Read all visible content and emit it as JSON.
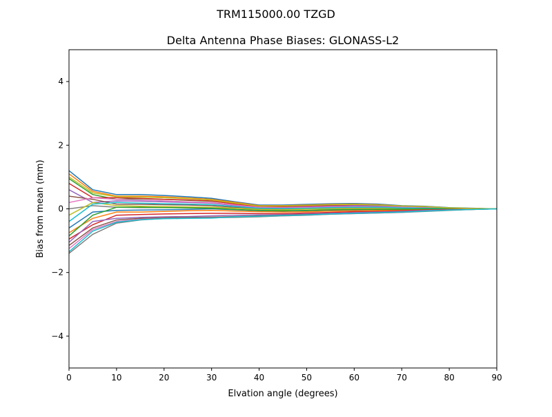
{
  "chart_data": {
    "type": "line",
    "suptitle": "TRM115000.00    TZGD",
    "title": "Delta Antenna Phase Biases: GLONASS-L2",
    "xlabel": "Elvation angle (degrees)",
    "ylabel": "Bias from mean (mm)",
    "xlim": [
      0,
      90
    ],
    "ylim": [
      -5,
      5
    ],
    "xticks": [
      0,
      10,
      20,
      30,
      40,
      50,
      60,
      70,
      80,
      90
    ],
    "yticks": [
      -4,
      -2,
      0,
      2,
      4
    ],
    "ytick_labels": [
      "−4",
      "−2",
      "0",
      "2",
      "4"
    ],
    "grid": false,
    "colors": [
      "#1f77b4",
      "#ff7f0e",
      "#2ca02c",
      "#d62728",
      "#9467bd",
      "#8c564b",
      "#e377c2",
      "#7f7f7f",
      "#bcbd22",
      "#17becf"
    ],
    "x": [
      0,
      5,
      10,
      15,
      20,
      25,
      30,
      35,
      40,
      45,
      50,
      55,
      60,
      65,
      70,
      75,
      80,
      85,
      90
    ],
    "series": [
      {
        "values": [
          1.2,
          0.6,
          0.45,
          0.45,
          0.42,
          0.38,
          0.33,
          0.22,
          0.12,
          0.12,
          0.14,
          0.16,
          0.17,
          0.15,
          0.1,
          0.08,
          0.04,
          0.02,
          0
        ]
      },
      {
        "values": [
          1.1,
          0.55,
          0.4,
          0.4,
          0.38,
          0.34,
          0.3,
          0.2,
          0.1,
          0.1,
          0.12,
          0.14,
          0.15,
          0.13,
          0.09,
          0.07,
          0.03,
          0.01,
          0
        ]
      },
      {
        "values": [
          0.95,
          0.45,
          0.3,
          0.32,
          0.3,
          0.27,
          0.24,
          0.16,
          0.08,
          0.08,
          0.1,
          0.12,
          0.13,
          0.11,
          0.08,
          0.06,
          0.03,
          0.01,
          0
        ]
      },
      {
        "values": [
          0.8,
          0.35,
          0.35,
          0.33,
          0.3,
          0.28,
          0.25,
          0.15,
          0.07,
          0.06,
          0.08,
          0.1,
          0.11,
          0.1,
          0.07,
          0.05,
          0.02,
          0.01,
          0
        ]
      },
      {
        "values": [
          0.6,
          0.2,
          0.25,
          0.24,
          0.22,
          0.2,
          0.18,
          0.1,
          0.04,
          0.04,
          0.06,
          0.08,
          0.1,
          0.09,
          0.06,
          0.04,
          0.02,
          0,
          0
        ]
      },
      {
        "values": [
          0.4,
          0.3,
          0.15,
          0.14,
          0.13,
          0.12,
          0.1,
          0.05,
          0.02,
          0.02,
          0.04,
          0.06,
          0.07,
          0.06,
          0.04,
          0.03,
          0.01,
          0,
          0
        ]
      },
      {
        "values": [
          0.2,
          0.35,
          0.3,
          0.28,
          0.25,
          0.22,
          0.2,
          0.12,
          0.05,
          0.04,
          0.05,
          0.06,
          0.07,
          0.06,
          0.05,
          0.03,
          0.01,
          0,
          0
        ]
      },
      {
        "values": [
          0.0,
          0.1,
          0.05,
          0.04,
          0.04,
          0.05,
          0.05,
          0.02,
          0,
          -0.01,
          0,
          0.02,
          0.03,
          0.03,
          0.02,
          0.01,
          0,
          0,
          0
        ]
      },
      {
        "values": [
          -0.2,
          0.2,
          0.1,
          0.08,
          0.07,
          0.06,
          0.05,
          0.02,
          -0.02,
          -0.03,
          -0.01,
          0,
          0.01,
          0.01,
          0.01,
          0,
          0,
          0,
          0
        ]
      },
      {
        "values": [
          -0.4,
          0.15,
          0.2,
          0.18,
          0.16,
          0.15,
          0.13,
          0.07,
          0.02,
          0.01,
          0.02,
          0.04,
          0.05,
          0.05,
          0.03,
          0.02,
          0.01,
          0,
          0
        ]
      },
      {
        "values": [
          -0.6,
          -0.1,
          -0.05,
          -0.04,
          -0.03,
          -0.02,
          0,
          -0.03,
          -0.06,
          -0.07,
          -0.06,
          -0.04,
          -0.03,
          -0.02,
          -0.01,
          -0.01,
          0,
          0,
          0
        ]
      },
      {
        "values": [
          -0.75,
          -0.3,
          -0.1,
          -0.1,
          -0.08,
          -0.06,
          -0.05,
          -0.07,
          -0.09,
          -0.1,
          -0.09,
          -0.07,
          -0.06,
          -0.05,
          -0.04,
          -0.02,
          -0.01,
          0,
          0
        ]
      },
      {
        "values": [
          -0.85,
          -0.2,
          0.05,
          0.05,
          0.04,
          0.03,
          0.02,
          -0.02,
          -0.05,
          -0.06,
          -0.05,
          -0.03,
          -0.02,
          -0.02,
          -0.01,
          0,
          0,
          0,
          0
        ]
      },
      {
        "values": [
          -0.95,
          -0.5,
          -0.2,
          -0.18,
          -0.16,
          -0.15,
          -0.14,
          -0.14,
          -0.15,
          -0.15,
          -0.13,
          -0.11,
          -0.09,
          -0.08,
          -0.06,
          -0.04,
          -0.02,
          -0.01,
          0
        ]
      },
      {
        "values": [
          -1.05,
          -0.4,
          -0.3,
          -0.27,
          -0.25,
          -0.24,
          -0.22,
          -0.2,
          -0.19,
          -0.18,
          -0.16,
          -0.14,
          -0.12,
          -0.1,
          -0.08,
          -0.05,
          -0.03,
          -0.01,
          0
        ]
      },
      {
        "values": [
          -1.15,
          -0.6,
          -0.35,
          -0.3,
          -0.28,
          -0.27,
          -0.26,
          -0.24,
          -0.22,
          -0.2,
          -0.18,
          -0.16,
          -0.14,
          -0.12,
          -0.1,
          -0.07,
          -0.04,
          -0.02,
          0
        ]
      },
      {
        "values": [
          -1.25,
          -0.65,
          -0.4,
          -0.33,
          -0.3,
          -0.29,
          -0.28,
          -0.26,
          -0.24,
          -0.22,
          -0.2,
          -0.17,
          -0.15,
          -0.13,
          -0.11,
          -0.07,
          -0.04,
          -0.02,
          0
        ]
      },
      {
        "values": [
          -1.4,
          -0.8,
          -0.45,
          -0.35,
          -0.3,
          -0.29,
          -0.28,
          -0.27,
          -0.25,
          -0.22,
          -0.2,
          -0.17,
          -0.15,
          -0.13,
          -0.11,
          -0.08,
          -0.05,
          -0.02,
          0
        ]
      },
      {
        "values": [
          1.0,
          0.5,
          0.38,
          0.37,
          0.35,
          0.32,
          0.28,
          0.18,
          0.09,
          0.09,
          0.11,
          0.13,
          0.14,
          0.12,
          0.09,
          0.07,
          0.03,
          0.01,
          0
        ]
      },
      {
        "values": [
          -1.35,
          -0.7,
          -0.42,
          -0.34,
          -0.31,
          -0.3,
          -0.29,
          -0.25,
          -0.23,
          -0.21,
          -0.19,
          -0.16,
          -0.14,
          -0.12,
          -0.1,
          -0.07,
          -0.04,
          -0.02,
          0
        ]
      }
    ]
  }
}
